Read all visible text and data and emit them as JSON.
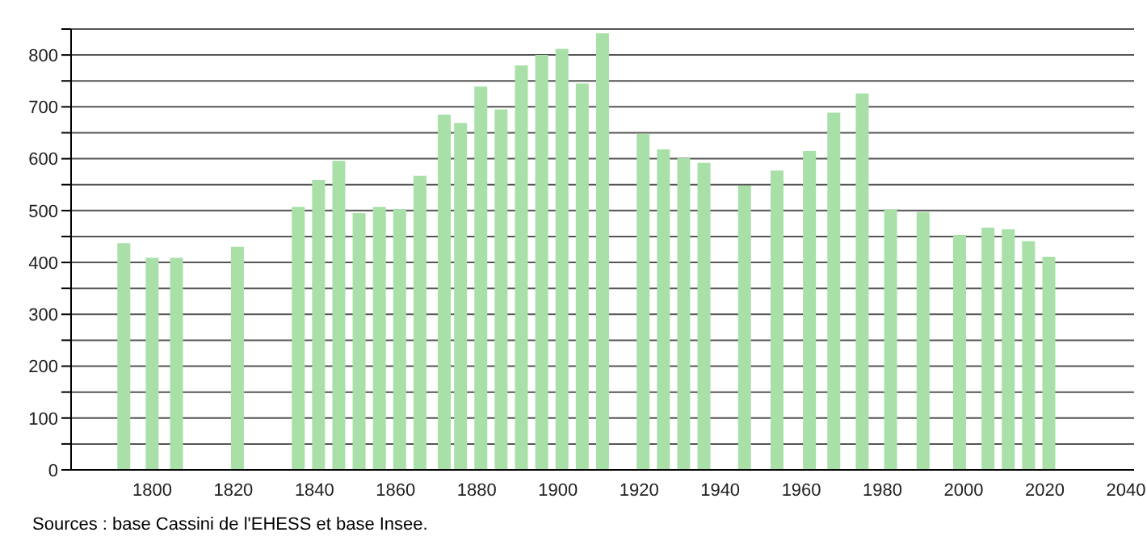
{
  "chart_data": {
    "type": "bar",
    "x": [
      1793,
      1800,
      1806,
      1821,
      1836,
      1841,
      1846,
      1851,
      1856,
      1861,
      1866,
      1872,
      1876,
      1881,
      1886,
      1891,
      1896,
      1901,
      1906,
      1911,
      1921,
      1926,
      1931,
      1936,
      1946,
      1954,
      1962,
      1968,
      1975,
      1982,
      1990,
      1999,
      2006,
      2011,
      2016,
      2021
    ],
    "values": [
      437,
      409,
      409,
      430,
      507,
      559,
      596,
      495,
      507,
      503,
      567,
      685,
      669,
      739,
      695,
      780,
      800,
      812,
      745,
      842,
      648,
      618,
      601,
      592,
      548,
      577,
      615,
      689,
      726,
      502,
      497,
      453,
      467,
      464,
      441,
      411
    ],
    "color": "#a8e0a8",
    "xlim": [
      1780,
      2042
    ],
    "xticks": [
      1800,
      1820,
      1840,
      1860,
      1880,
      1900,
      1920,
      1940,
      1960,
      1980,
      2000,
      2020,
      2040
    ],
    "ylim": [
      0,
      850
    ],
    "yticks": [
      0,
      {
        "value": 50,
        "label": null
      },
      100,
      {
        "value": 150,
        "label": null
      },
      200,
      {
        "value": 250,
        "label": null
      },
      300,
      {
        "value": 350,
        "label": null
      },
      400,
      {
        "value": 450,
        "label": null
      },
      500,
      {
        "value": 550,
        "label": null
      },
      600,
      {
        "value": 650,
        "label": null
      },
      700,
      {
        "value": 750,
        "label": null
      },
      800,
      {
        "value": 850,
        "label": null
      }
    ],
    "grid": "y",
    "annotations": [
      "Sources : base Cassini de l'EHESS et base Insee."
    ]
  }
}
